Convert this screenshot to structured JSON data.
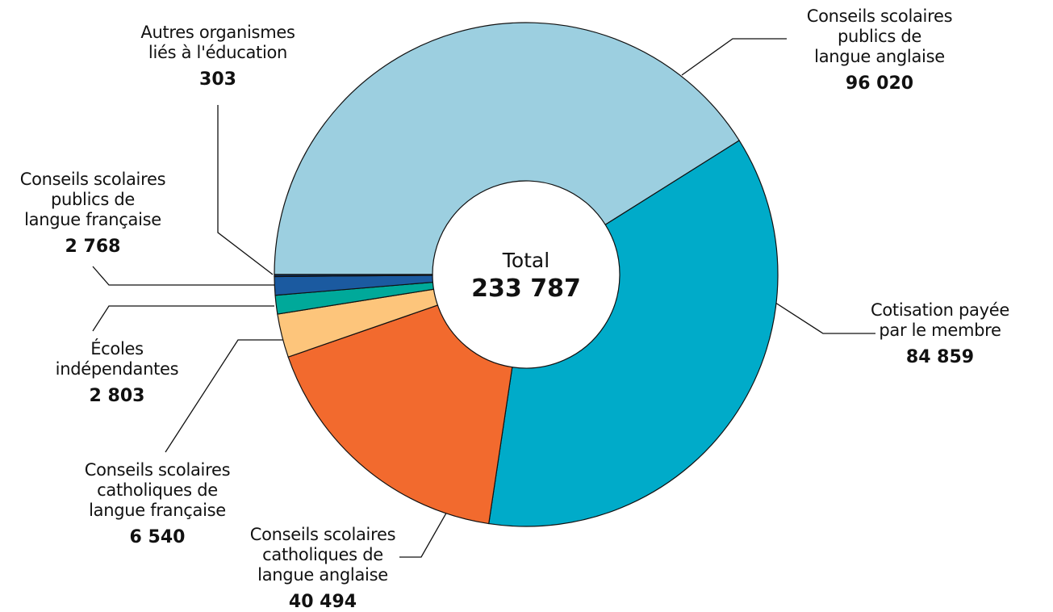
{
  "chart_data": {
    "type": "donut",
    "center_title": "Total",
    "total": "233 787",
    "categories": [
      "Conseils scolaires\npublics de\nlangue anglaise",
      "Cotisation payée\npar le membre",
      "Conseils scolaires\ncatholiques de\nlangue anglaise",
      "Conseils scolaires\ncatholiques de\nlangue française",
      "Écoles\nindépendantes",
      "Conseils scolaires\npublics de\nlangue française",
      "Autres organismes\nliés à l'éducation"
    ],
    "values": [
      96020,
      84859,
      40494,
      6540,
      2803,
      2768,
      303
    ],
    "value_labels": [
      "96 020",
      "84 859",
      "40 494",
      "6 540",
      "2 803",
      "2 768",
      "303"
    ],
    "colors": [
      "#9ccfe0",
      "#00abc9",
      "#f26a2e",
      "#fdc57b",
      "#00a99a",
      "#1b5aa0",
      "#0d2f5a"
    ]
  }
}
